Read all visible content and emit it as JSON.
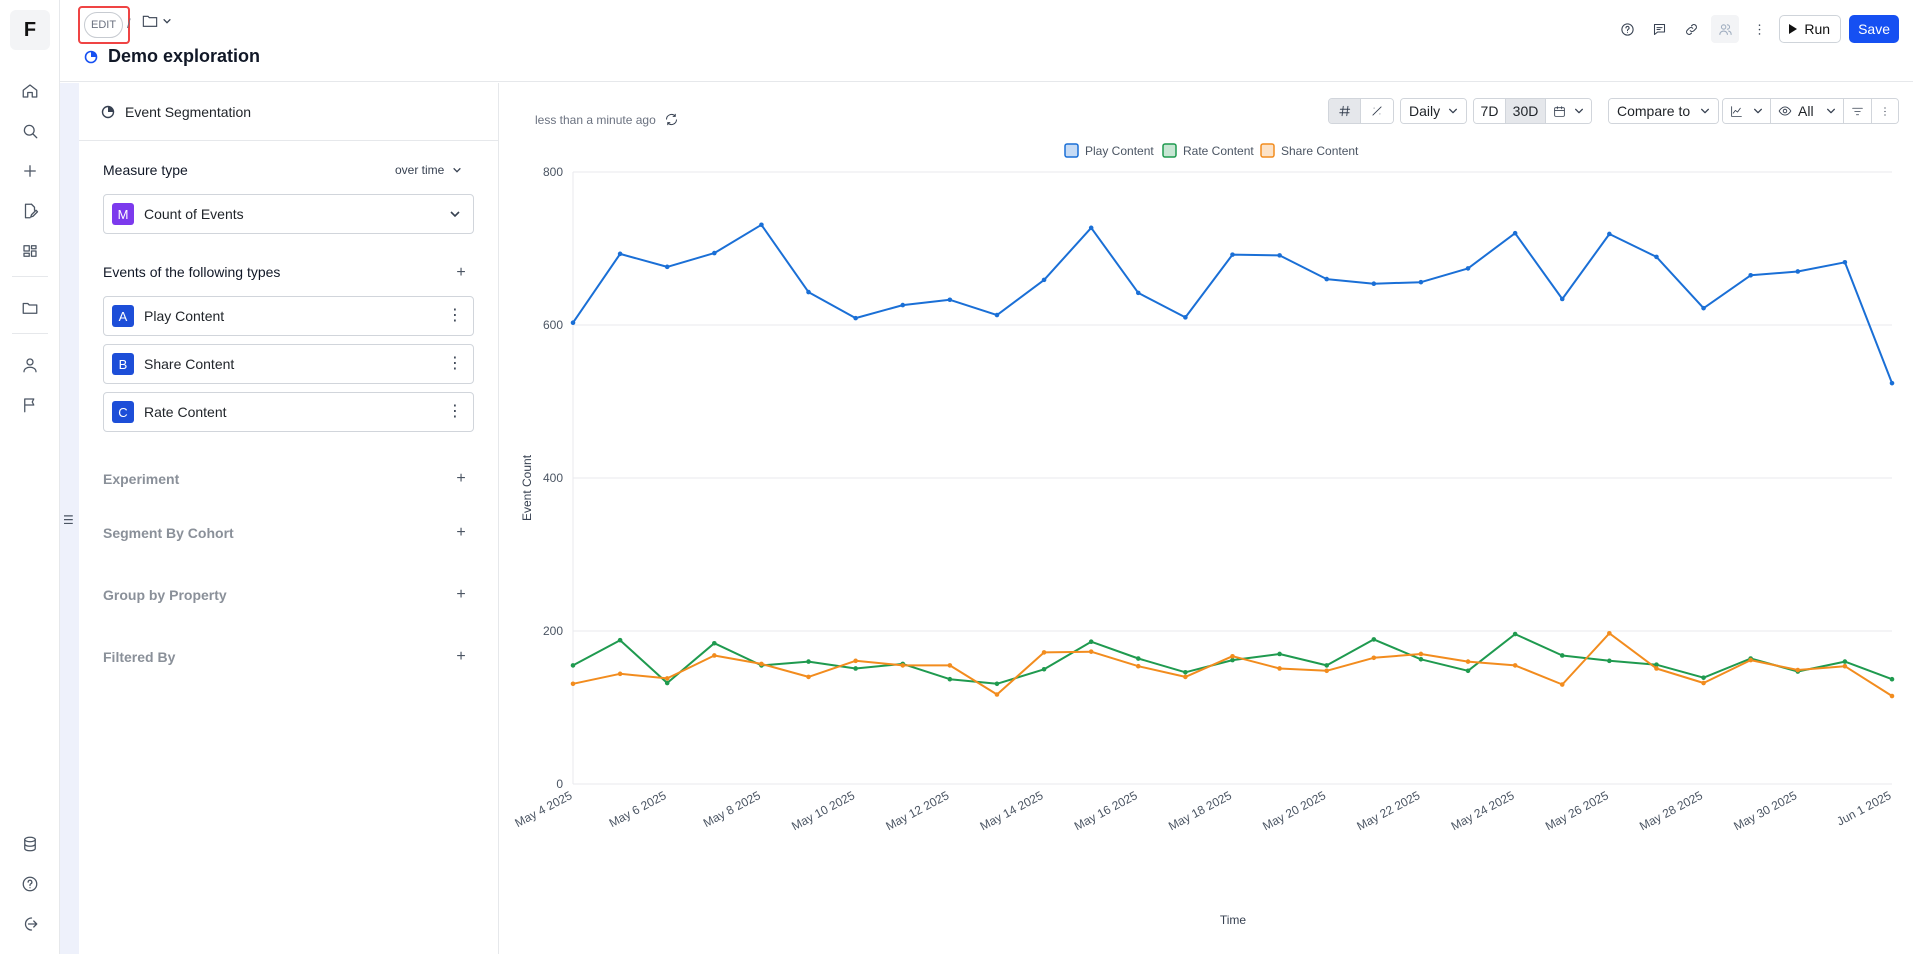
{
  "rail": {
    "logo": "F",
    "icons": [
      "home-icon",
      "search-icon",
      "plus-icon",
      "edit-document-icon",
      "dashboard-icon",
      "folder-icon",
      "user-icon",
      "flag-icon",
      "database-icon",
      "help-icon",
      "logout-icon"
    ]
  },
  "header": {
    "edit_badge": "EDIT",
    "slash": "/",
    "title": "Demo exploration",
    "run_label": "Run",
    "save_label": "Save",
    "icons": [
      "help-icon",
      "comment-icon",
      "link-icon",
      "share-users-icon",
      "more-icon"
    ]
  },
  "panel": {
    "head_title": "Event Segmentation",
    "measure_label": "Measure type",
    "measure_mode": "over time",
    "measure_letter": "M",
    "measure_value": "Count of Events",
    "events_label": "Events of the following types",
    "events": [
      {
        "letter": "A",
        "label": "Play Content"
      },
      {
        "letter": "B",
        "label": "Share Content"
      },
      {
        "letter": "C",
        "label": "Rate Content"
      }
    ],
    "sections": [
      "Experiment",
      "Segment By Cohort",
      "Group by Property",
      "Filtered By"
    ]
  },
  "toolbar": {
    "updated": "less than a minute ago",
    "interval": "Daily",
    "range_7d": "7D",
    "range_30d": "30D",
    "compare": "Compare to",
    "visibility": "All"
  },
  "colors": {
    "play": "#1a6fd6",
    "rate": "#1f9a4f",
    "share": "#f28c1e",
    "accent": "#1650f2"
  },
  "chart_data": {
    "type": "line",
    "xlabel": "Time",
    "ylabel": "Event Count",
    "ylim": [
      0,
      800
    ],
    "yticks": [
      0,
      200,
      400,
      600,
      800
    ],
    "x": [
      "May 4 2025",
      "May 5 2025",
      "May 6 2025",
      "May 7 2025",
      "May 8 2025",
      "May 9 2025",
      "May 10 2025",
      "May 11 2025",
      "May 12 2025",
      "May 13 2025",
      "May 14 2025",
      "May 15 2025",
      "May 16 2025",
      "May 17 2025",
      "May 18 2025",
      "May 19 2025",
      "May 20 2025",
      "May 21 2025",
      "May 22 2025",
      "May 23 2025",
      "May 24 2025",
      "May 25 2025",
      "May 26 2025",
      "May 27 2025",
      "May 28 2025",
      "May 29 2025",
      "May 30 2025",
      "May 31 2025",
      "Jun 1 2025"
    ],
    "x_tick_labels": [
      "May 4 2025",
      "May 6 2025",
      "May 8 2025",
      "May 10 2025",
      "May 12 2025",
      "May 14 2025",
      "May 16 2025",
      "May 18 2025",
      "May 20 2025",
      "May 22 2025",
      "May 24 2025",
      "May 26 2025",
      "May 28 2025",
      "May 30 2025",
      "Jun 1 2025"
    ],
    "series": [
      {
        "name": "Play Content",
        "color": "#1a6fd6",
        "values": [
          603,
          693,
          676,
          694,
          731,
          643,
          609,
          626,
          633,
          613,
          659,
          727,
          642,
          610,
          692,
          691,
          660,
          654,
          656,
          674,
          720,
          634,
          719,
          689,
          622,
          665,
          670,
          682,
          524
        ]
      },
      {
        "name": "Rate Content",
        "color": "#1f9a4f",
        "values": [
          155,
          188,
          132,
          184,
          155,
          160,
          151,
          157,
          137,
          131,
          150,
          186,
          164,
          146,
          162,
          170,
          155,
          189,
          163,
          148,
          196,
          168,
          161,
          156,
          139,
          164,
          147,
          160,
          137
        ]
      },
      {
        "name": "Share Content",
        "color": "#f28c1e",
        "values": [
          131,
          144,
          138,
          168,
          157,
          140,
          161,
          155,
          155,
          117,
          172,
          173,
          154,
          140,
          167,
          151,
          148,
          165,
          170,
          160,
          155,
          130,
          197,
          151,
          132,
          162,
          149,
          154,
          115
        ]
      }
    ],
    "legend": [
      "Play Content",
      "Rate Content",
      "Share Content"
    ]
  }
}
